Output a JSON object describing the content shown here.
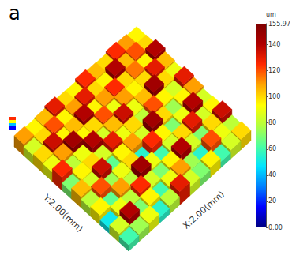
{
  "chart_data": {
    "type": "surface3d",
    "title": "a",
    "x_label": "X:2.00(mm)",
    "y_label": "Y:2.00(mm)",
    "colorbar_label": "um",
    "colorbar_range": [
      0,
      155.97
    ],
    "colorbar_ticks": [
      {
        "value": 0,
        "label": "0.00"
      },
      20,
      40,
      60,
      80,
      100,
      120,
      140,
      {
        "value": 155.97,
        "label": "155.97"
      }
    ],
    "tick_labels": false,
    "cells": [
      [
        60,
        75,
        90,
        55,
        80,
        130,
        85,
        70,
        95,
        60,
        85,
        100
      ],
      [
        85,
        140,
        70,
        95,
        60,
        90,
        110,
        75,
        55,
        120,
        90,
        80
      ],
      [
        50,
        90,
        80,
        125,
        85,
        70,
        95,
        140,
        85,
        70,
        100,
        135
      ],
      [
        95,
        65,
        110,
        80,
        145,
        90,
        60,
        85,
        100,
        130,
        85,
        95
      ],
      [
        80,
        120,
        75,
        90,
        100,
        55,
        125,
        95,
        70,
        90,
        140,
        85
      ],
      [
        105,
        85,
        135,
        65,
        95,
        110,
        85,
        145,
        100,
        75,
        95,
        110
      ],
      [
        70,
        95,
        100,
        85,
        130,
        90,
        100,
        80,
        120,
        95,
        85,
        130
      ],
      [
        125,
        80,
        90,
        140,
        85,
        105,
        135,
        90,
        105,
        145,
        100,
        90
      ],
      [
        90,
        110,
        145,
        95,
        100,
        120,
        90,
        110,
        95,
        100,
        130,
        105
      ],
      [
        100,
        135,
        95,
        105,
        140,
        95,
        110,
        125,
        100,
        115,
        95,
        140
      ],
      [
        85,
        100,
        120,
        95,
        110,
        130,
        100,
        95,
        140,
        105,
        120,
        100
      ],
      [
        110,
        95,
        105,
        130,
        100,
        95,
        125,
        105,
        100,
        125,
        110,
        95
      ]
    ]
  }
}
